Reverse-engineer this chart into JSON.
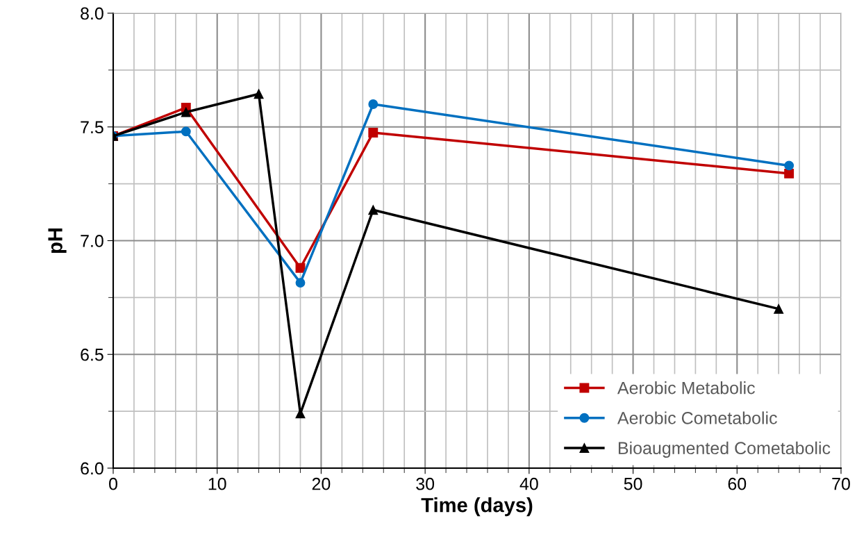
{
  "chart_data": {
    "type": "line",
    "xlabel": "Time (days)",
    "ylabel": "pH",
    "xlim": [
      0,
      70
    ],
    "xticks": [
      0,
      10,
      20,
      30,
      40,
      50,
      60,
      70
    ],
    "ylim": [
      6.0,
      8.0
    ],
    "yticks": [
      {
        "value": 6.0,
        "label": "6.0"
      },
      {
        "value": 6.5,
        "label": "6.5"
      },
      {
        "value": 7.0,
        "label": "7.0"
      },
      {
        "value": 7.5,
        "label": "7.5"
      },
      {
        "value": 8.0,
        "label": "8.0"
      }
    ],
    "grid": true,
    "legend": "bottom right",
    "series": [
      {
        "name": "Aerobic Metabolic",
        "color": "#c00000",
        "marker": "square",
        "x": [
          0,
          7,
          18,
          25,
          65
        ],
        "values": [
          7.46,
          7.585,
          6.88,
          7.475,
          7.295
        ]
      },
      {
        "name": "Aerobic Cometabolic",
        "color": "#0070c0",
        "marker": "circle",
        "x": [
          0,
          7,
          18,
          25,
          65
        ],
        "values": [
          7.46,
          7.48,
          6.815,
          7.6,
          7.33
        ]
      },
      {
        "name": "Bioaugmented Cometabolic",
        "color": "#000000",
        "marker": "triangle",
        "x": [
          0,
          7,
          14,
          18,
          25,
          64
        ],
        "values": [
          7.46,
          7.565,
          7.645,
          6.24,
          7.135,
          6.7
        ]
      }
    ]
  }
}
